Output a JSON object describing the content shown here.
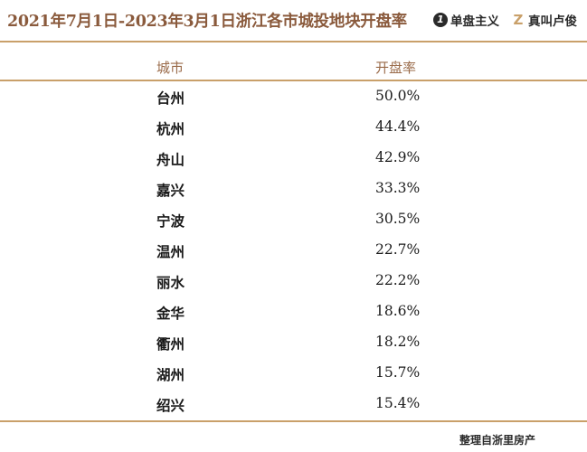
{
  "header": {
    "title": "2021年7月1日-2023年3月1日浙江各市城投地块开盘率",
    "brands": [
      {
        "icon": "number-one-logo-icon",
        "mark": "1",
        "name": "单盘主义"
      },
      {
        "icon": "z-logo-icon",
        "mark": "Z",
        "name": "真叫卢俊"
      }
    ]
  },
  "table": {
    "columns": [
      "城市",
      "开盘率"
    ],
    "rows": [
      {
        "city": "台州",
        "rate": "50.0%"
      },
      {
        "city": "杭州",
        "rate": "44.4%"
      },
      {
        "city": "舟山",
        "rate": "42.9%"
      },
      {
        "city": "嘉兴",
        "rate": "33.3%"
      },
      {
        "city": "宁波",
        "rate": "30.5%"
      },
      {
        "city": "温州",
        "rate": "22.7%"
      },
      {
        "city": "丽水",
        "rate": "22.2%"
      },
      {
        "city": "金华",
        "rate": "18.6%"
      },
      {
        "city": "衢州",
        "rate": "18.2%"
      },
      {
        "city": "湖州",
        "rate": "15.7%"
      },
      {
        "city": "绍兴",
        "rate": "15.4%"
      }
    ]
  },
  "footer": {
    "source": "整理自浙里房产"
  },
  "colors": {
    "accent": "#c9a06a",
    "title": "#8a5a3c",
    "text": "#1a1a1a"
  }
}
